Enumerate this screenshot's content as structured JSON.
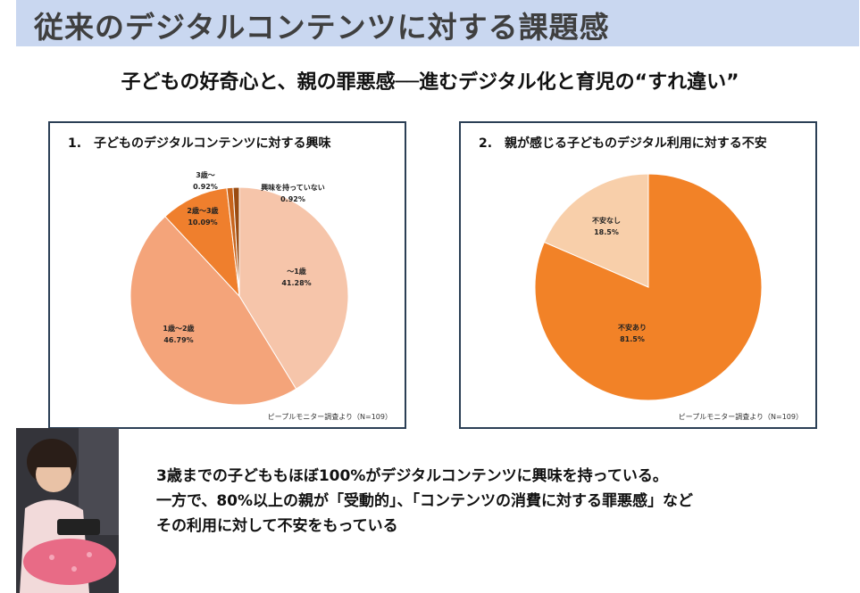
{
  "header": {
    "title": "従来のデジタルコンテンツに対する課題感",
    "subtitle": "子どもの好奇心と、親の罪悪感──進むデジタル化と育児の“すれ違い”"
  },
  "chart_data": [
    {
      "type": "pie",
      "title": "1.　子どものデジタルコンテンツに対する興味",
      "source": "ピープルモニター調査より（N=109）",
      "slices": [
        {
          "label": "～1歳",
          "value": 41.28,
          "value_label": "41.28%",
          "color": "#f6c5aa"
        },
        {
          "label": "1歳～2歳",
          "value": 46.79,
          "value_label": "46.79%",
          "color": "#f4a47a"
        },
        {
          "label": "2歳～3歳",
          "value": 10.09,
          "value_label": "10.09%",
          "color": "#ef7f2d"
        },
        {
          "label": "3歳～",
          "value": 0.92,
          "value_label": "0.92%",
          "color": "#c8651c"
        },
        {
          "label": "興味を持っていない",
          "value": 0.92,
          "value_label": "0.92%",
          "color": "#9a4c12"
        }
      ]
    },
    {
      "type": "pie",
      "title": "2.　親が感じる子どものデジタル利用に対する不安",
      "source": "ピープルモニター調査より（N=109）",
      "slices": [
        {
          "label": "不安あり",
          "value": 81.5,
          "value_label": "81.5%",
          "color": "#f28227"
        },
        {
          "label": "不安なし",
          "value": 18.5,
          "value_label": "18.5%",
          "color": "#f8cfaa"
        }
      ]
    }
  ],
  "body": {
    "line1": "3歳までの子どももほぼ100%がデジタルコンテンツに興味を持っている。",
    "line2": "一方で、80%以上の親が「受動的」、「コンテンツの消費に対する罪悪感」など",
    "line3": "その利用に対して不安をもっている"
  }
}
